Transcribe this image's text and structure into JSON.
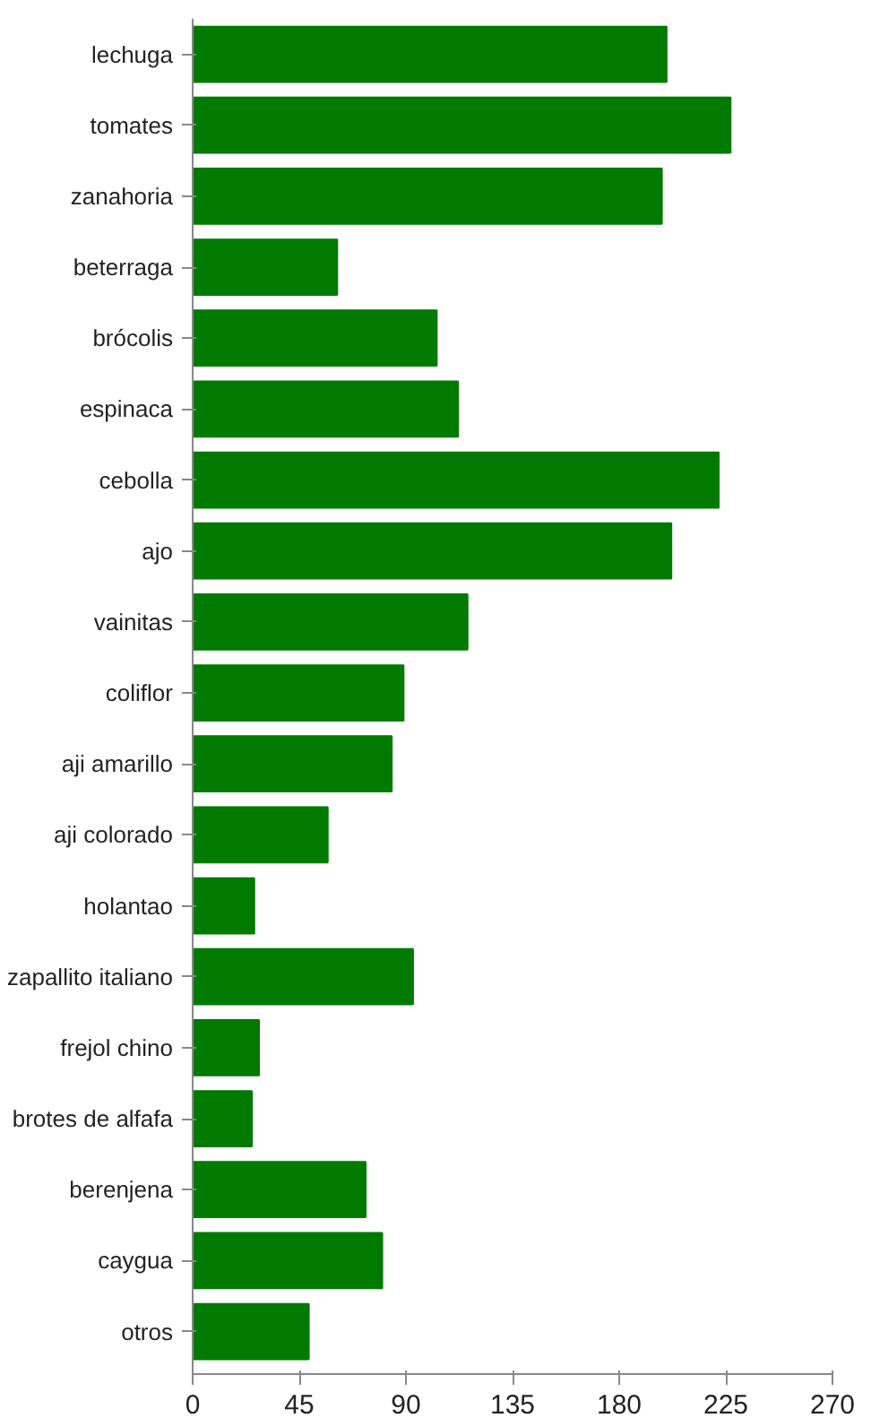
{
  "chart_data": {
    "type": "bar",
    "orientation": "horizontal",
    "categories": [
      "lechuga",
      "tomates",
      "zanahoria",
      "beterraga",
      "brócolis",
      "espinaca",
      "cebolla",
      "ajo",
      "vainitas",
      "coliflor",
      "aji amarillo",
      "aji colorado",
      "holantao",
      "zapallito italiano",
      "frejol chino",
      "brotes de alfafa",
      "berenjena",
      "caygua",
      "otros"
    ],
    "values": [
      200,
      227,
      198,
      61,
      103,
      112,
      222,
      202,
      116,
      89,
      84,
      57,
      26,
      93,
      28,
      25,
      73,
      80,
      49
    ],
    "color": "#007a00",
    "xlim": [
      0,
      270
    ],
    "xticks": [
      0,
      45,
      90,
      135,
      180,
      225,
      270
    ],
    "grid": false
  }
}
